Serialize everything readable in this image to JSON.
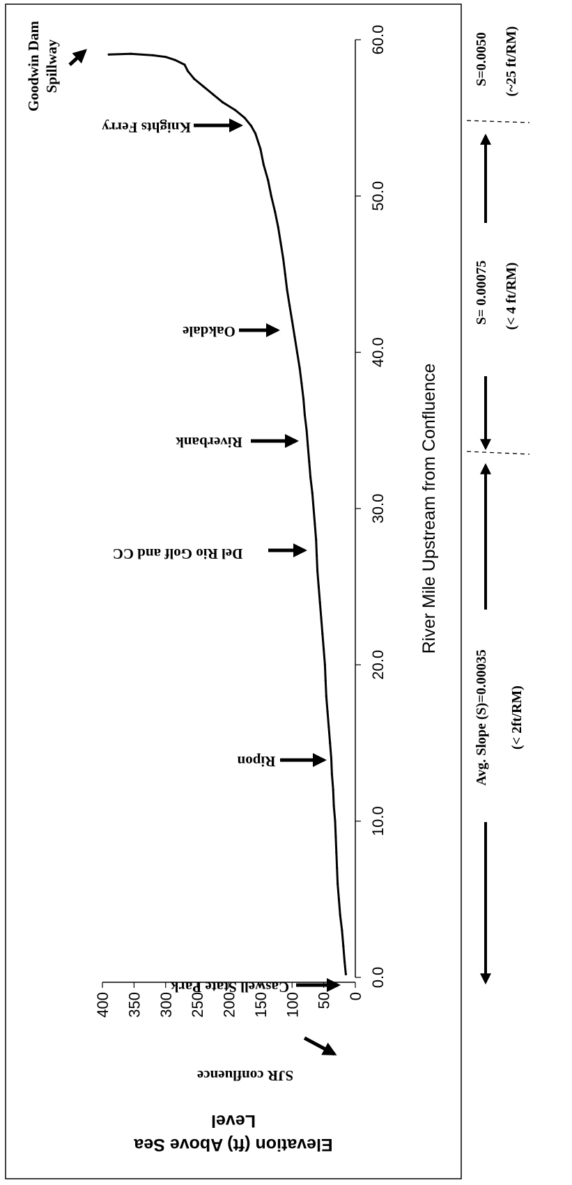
{
  "chart_data": {
    "type": "line",
    "title": "",
    "xlabel": "River Mile Upstream from Confluence",
    "ylabel": "Elevation (ft) Above Sea Level",
    "xlim": [
      0,
      60
    ],
    "ylim": [
      0,
      400
    ],
    "x_ticks": [
      "0.0",
      "10.0",
      "20.0",
      "30.0",
      "40.0",
      "50.0",
      "60.0"
    ],
    "y_ticks": [
      "0",
      "50",
      "100",
      "150",
      "200",
      "250",
      "300",
      "350",
      "400"
    ],
    "grid": false,
    "series": [
      {
        "x": [
          0.2,
          1.0,
          2.0,
          3.0,
          4.0,
          5.0,
          6.0,
          7.0,
          8.0,
          9.0,
          10.0,
          11.0,
          12.0,
          13.0,
          14.0,
          15.0,
          16.0,
          17.0,
          18.0,
          19.0,
          20.0,
          21.0,
          22.0,
          23.0,
          24.0,
          25.0,
          26.0,
          27.0,
          28.0,
          29.0,
          30.0,
          31.0,
          32.0,
          33.0,
          34.0,
          35.0,
          36.0,
          37.0,
          38.0,
          39.0,
          40.0,
          41.0,
          42.0,
          43.0,
          44.0,
          45.0,
          46.0,
          47.0,
          48.0,
          49.0,
          50.0,
          51.0,
          52.0,
          53.0,
          54.0,
          54.5,
          55.0,
          55.5,
          56.0,
          56.5,
          57.0,
          57.5,
          58.0,
          58.4,
          58.7,
          58.9,
          59.0,
          59.1,
          59.05
        ],
        "y": [
          15,
          17,
          19,
          21,
          24,
          26,
          28,
          29,
          30,
          31,
          32,
          34,
          35,
          37,
          38,
          40,
          42,
          44,
          46,
          47,
          48,
          50,
          52,
          54,
          56,
          58,
          60,
          61,
          62,
          64,
          66,
          68,
          71,
          73,
          75,
          77,
          80,
          82,
          85,
          88,
          92,
          96,
          100,
          104,
          108,
          111,
          114,
          118,
          122,
          127,
          133,
          138,
          145,
          150,
          158,
          165,
          175,
          190,
          210,
          225,
          240,
          255,
          265,
          270,
          285,
          300,
          320,
          355,
          390
        ]
      }
    ],
    "annotations": [
      {
        "text": "Goodwin Dam Spillway",
        "x": 59.0
      },
      {
        "text": "Knights Ferry",
        "x": 54.2
      },
      {
        "text": "Oakdale",
        "x": 41.5
      },
      {
        "text": "Riverbank",
        "x": 34.5
      },
      {
        "text": "Del Rio Golf and CC",
        "x": 27.5
      },
      {
        "text": "Ripon",
        "x": 14.0
      },
      {
        "text": "Caswell State Park",
        "x": 6.0
      },
      {
        "text": "SJR confluence",
        "x": 0.5
      }
    ],
    "slope_segments": [
      {
        "label": "Avg. Slope (S)=0.00035",
        "sublabel": "(< 2ft/RM)",
        "from": 0,
        "to": 33.5
      },
      {
        "label": "S= 0.00075",
        "sublabel": "(< 4 ft/RM)",
        "from": 33.5,
        "to": 54.5
      },
      {
        "label": "S=0.0050",
        "sublabel": "(~25 ft/RM)",
        "from": 54.5,
        "to": 60
      }
    ]
  }
}
